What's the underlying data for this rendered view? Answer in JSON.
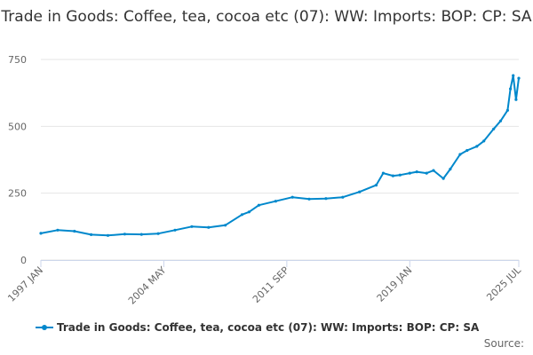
{
  "title": "Trade in Goods: Coffee, tea, cocoa etc (07): WW: Imports: BOP: CP: SA",
  "source_label": "Source:",
  "colors": {
    "series": "#0088cc",
    "grid": "#e6e6e6",
    "axis": "#ccd6eb"
  },
  "chart_data": {
    "type": "line",
    "title": "Trade in Goods: Coffee, tea, cocoa etc (07): WW: Imports: BOP: CP: SA",
    "xlabel": "",
    "ylabel": "",
    "ylim": [
      0,
      750
    ],
    "yticks": [
      0,
      250,
      500,
      750
    ],
    "xticks": [
      "1997 JAN",
      "2004 MAY",
      "2011 SEP",
      "2019 JAN",
      "2025 JUL"
    ],
    "x_range": [
      "1997-01",
      "2025-07"
    ],
    "grid": true,
    "legend": "bottom",
    "series": [
      {
        "name": "Trade in Goods: Coffee, tea, cocoa etc (07): WW: Imports: BOP: CP: SA",
        "x": [
          "1997-01",
          "1998-01",
          "1999-01",
          "2000-01",
          "2001-01",
          "2002-01",
          "2003-01",
          "2004-01",
          "2005-01",
          "2006-01",
          "2007-01",
          "2008-01",
          "2009-01",
          "2009-06",
          "2010-01",
          "2011-01",
          "2012-01",
          "2013-01",
          "2014-01",
          "2015-01",
          "2016-01",
          "2017-01",
          "2017-06",
          "2018-01",
          "2018-06",
          "2019-01",
          "2019-06",
          "2020-01",
          "2020-06",
          "2021-01",
          "2021-06",
          "2022-01",
          "2022-06",
          "2023-01",
          "2023-06",
          "2024-01",
          "2024-06",
          "2024-11",
          "2025-01",
          "2025-03",
          "2025-05",
          "2025-07"
        ],
        "values": [
          100,
          112,
          108,
          95,
          92,
          97,
          96,
          99,
          112,
          125,
          122,
          130,
          170,
          180,
          205,
          220,
          235,
          228,
          230,
          235,
          255,
          280,
          325,
          315,
          318,
          325,
          330,
          325,
          335,
          305,
          340,
          395,
          410,
          425,
          445,
          490,
          520,
          560,
          640,
          690,
          600,
          680
        ]
      }
    ]
  }
}
